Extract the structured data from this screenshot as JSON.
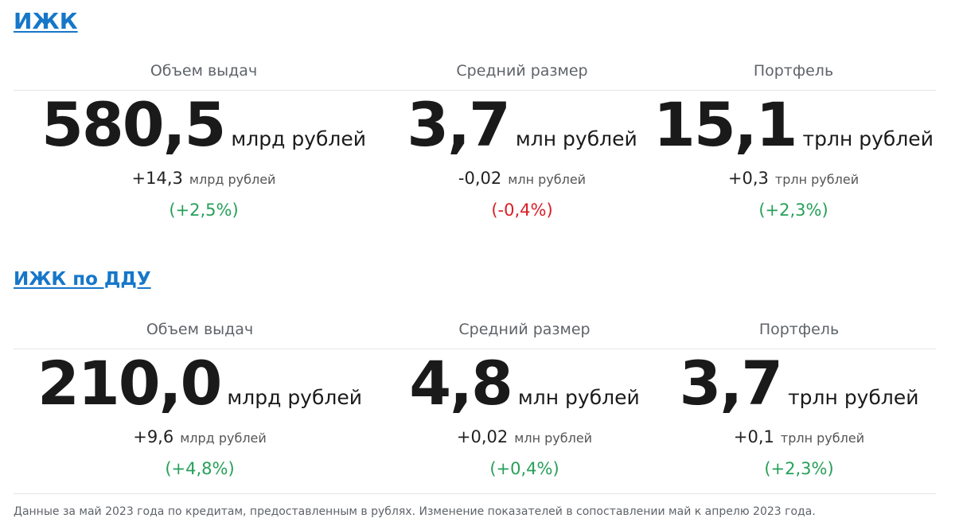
{
  "sections": [
    {
      "title": "ИЖК",
      "metrics": [
        {
          "label": "Объем выдач",
          "value": "580,5",
          "unit": "млрд рублей",
          "delta": "+14,3",
          "delta_unit": "млрд рублей",
          "pct": "(+2,5%)",
          "trend": "up"
        },
        {
          "label": "Средний размер",
          "value": "3,7",
          "unit": "млн рублей",
          "delta": "-0,02",
          "delta_unit": "млн рублей",
          "pct": "(-0,4%)",
          "trend": "down"
        },
        {
          "label": "Портфель",
          "value": "15,1",
          "unit": "трлн рублей",
          "delta": "+0,3",
          "delta_unit": "трлн рублей",
          "pct": "(+2,3%)",
          "trend": "up"
        }
      ]
    },
    {
      "title": "ИЖК по ДДУ",
      "metrics": [
        {
          "label": "Объем выдач",
          "value": "210,0",
          "unit": "млрд рублей",
          "delta": "+9,6",
          "delta_unit": "млрд рублей",
          "pct": "(+4,8%)",
          "trend": "up"
        },
        {
          "label": "Средний размер",
          "value": "4,8",
          "unit": "млн рублей",
          "delta": "+0,02",
          "delta_unit": "млн рублей",
          "pct": "(+0,4%)",
          "trend": "up"
        },
        {
          "label": "Портфель",
          "value": "3,7",
          "unit": "трлн рублей",
          "delta": "+0,1",
          "delta_unit": "трлн рублей",
          "pct": "(+2,3%)",
          "trend": "up"
        }
      ]
    }
  ],
  "footnote": "Данные за май 2023 года по кредитам, предоставленным в рублях. Изменение показателей в сопоставлении май к апрелю 2023 года.",
  "colors": {
    "link": "#1677c9",
    "positive": "#27a05a",
    "negative": "#d81f26"
  }
}
